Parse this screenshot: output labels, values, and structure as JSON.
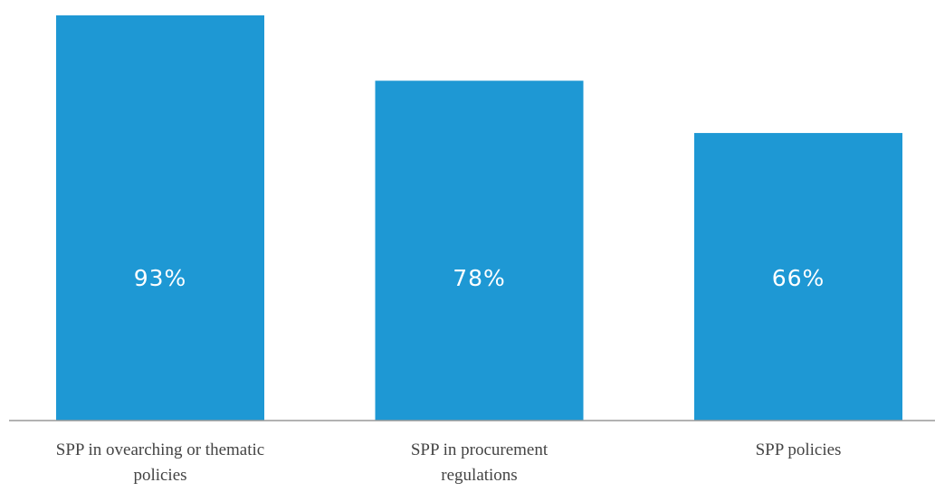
{
  "chart_data": {
    "type": "bar",
    "categories": [
      "SPP in ovearching or thematic policies",
      "SPP in procurement regulations",
      "SPP policies"
    ],
    "values": [
      93,
      78,
      66
    ],
    "value_labels": [
      "93%",
      "78%",
      "66%"
    ],
    "color": "#1e98d4"
  }
}
